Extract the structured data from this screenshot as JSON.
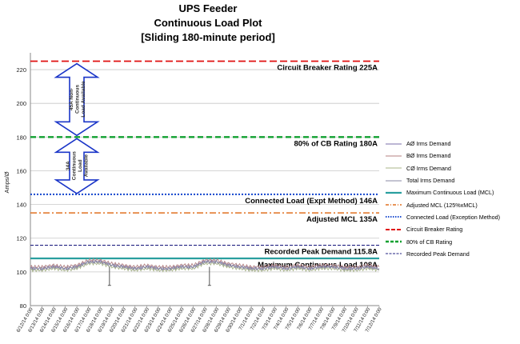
{
  "title": {
    "line1": "UPS Feeder",
    "line2": "Continuous Load Plot",
    "line3": "[Sliding 180-minute period]"
  },
  "colors": {
    "phase_a": "#7b6fa8",
    "phase_b": "#b58282",
    "phase_c": "#a9b58a",
    "total": "#8a8aa6",
    "mcl": "#2a9f9f",
    "adjusted_mcl": "#e07020",
    "connected_load": "#2050d0",
    "cb_rating": "#e01010",
    "cb_80": "#10a030",
    "peak": "#202080",
    "arrow_outline": "#1a35c8"
  },
  "chart_data": {
    "type": "line",
    "title": "UPS Feeder Continuous Load Plot [Sliding 180-minute period]",
    "ylabel": "Amps/Ø",
    "xlabel": "",
    "ylim": [
      80,
      230
    ],
    "yticks": [
      80,
      100,
      120,
      140,
      160,
      180,
      200,
      220
    ],
    "x": [
      "6/12/14 0:00",
      "6/13/14 0:00",
      "6/14/14 0:00",
      "6/15/14 0:00",
      "6/16/14 0:00",
      "6/17/14 0:00",
      "6/18/14 0:00",
      "6/19/14 0:00",
      "6/20/14 0:00",
      "6/21/14 0:00",
      "6/22/14 0:00",
      "6/23/14 0:00",
      "6/24/14 0:00",
      "6/25/14 0:00",
      "6/26/14 0:00",
      "6/27/14 0:00",
      "6/28/14 0:00",
      "6/29/14 0:00",
      "6/30/14 0:00",
      "7/1/14 0:00",
      "7/2/14 0:00",
      "7/3/14 0:00",
      "7/4/14 0:00",
      "7/5/14 0:00",
      "7/6/14 0:00",
      "7/7/14 0:00",
      "7/8/14 0:00",
      "7/9/14 0:00",
      "7/10/14 0:00",
      "7/11/14 0:00",
      "7/12/14 0:00"
    ],
    "series": [
      {
        "name": "AØ Irms Demand",
        "values": [
          102,
          102,
          103,
          102,
          103,
          106,
          106,
          104,
          103,
          102,
          103,
          102,
          102,
          103,
          103,
          106,
          106,
          104,
          103,
          102,
          102,
          103,
          102,
          103,
          102,
          103,
          103,
          102,
          102,
          103,
          102
        ]
      },
      {
        "name": "BØ Irms Demand",
        "values": [
          103,
          103,
          104,
          103,
          104,
          107,
          107,
          105,
          104,
          103,
          104,
          103,
          103,
          104,
          104,
          107,
          107,
          105,
          104,
          103,
          103,
          104,
          103,
          104,
          103,
          104,
          104,
          103,
          103,
          104,
          103
        ]
      },
      {
        "name": "CØ Irms Demand",
        "values": [
          101,
          101,
          102,
          101,
          102,
          105,
          105,
          103,
          102,
          101,
          102,
          101,
          101,
          102,
          102,
          105,
          105,
          103,
          102,
          101,
          101,
          102,
          101,
          102,
          101,
          102,
          102,
          101,
          101,
          102,
          101
        ]
      },
      {
        "name": "Total Irms Demand",
        "values": [
          102,
          102,
          103,
          102,
          103,
          106,
          106,
          104,
          103,
          102,
          103,
          102,
          102,
          103,
          103,
          106,
          106,
          104,
          103,
          102,
          102,
          103,
          102,
          103,
          102,
          103,
          103,
          102,
          102,
          103,
          102
        ]
      },
      {
        "name": "Maximum Continuous Load (MCL)",
        "value": 108
      },
      {
        "name": "Adjusted MCL (125%xMCL)",
        "value": 135
      },
      {
        "name": "Connected Load (Exception Method)",
        "value": 146
      },
      {
        "name": "Circuit Breaker Rating",
        "value": 225
      },
      {
        "name": "80% of CB Rating",
        "value": 180
      },
      {
        "name": "Recorded Peak Demand",
        "value": 115.8
      }
    ],
    "dips": [
      {
        "x_index": 6.8,
        "value": 92
      },
      {
        "x_index": 15.4,
        "value": 92
      }
    ],
    "annotations": {
      "cb_label": "Circuit Breaker Rating 225A",
      "cb80_label": "80% of CB Rating 180A",
      "connected_label": "Connected Load (Expt Method) 146A",
      "adjusted_label": "Adjusted MCL 135A",
      "peak_label": "Recorded Peak Demand 115.8A",
      "mcl_label": "Maximum Continuous Load 108A",
      "upper_arrow_text": [
        "45A Non-",
        "Continuous",
        "Load Available"
      ],
      "lower_arrow_text": [
        "34A",
        "Continuous",
        "Load",
        "Available"
      ]
    },
    "legend": {
      "placement": "right",
      "items": [
        "AØ Irms Demand",
        "BØ Irms Demand",
        "CØ Irms Demand",
        "Total Irms Demand",
        "Maximum Continuous Load (MCL)",
        "Adjusted MCL (125%xMCL)",
        "Connected Load (Exception Method)",
        "Circuit Breaker Rating",
        "80% of CB Rating",
        "Recorded Peak Demand"
      ]
    }
  }
}
